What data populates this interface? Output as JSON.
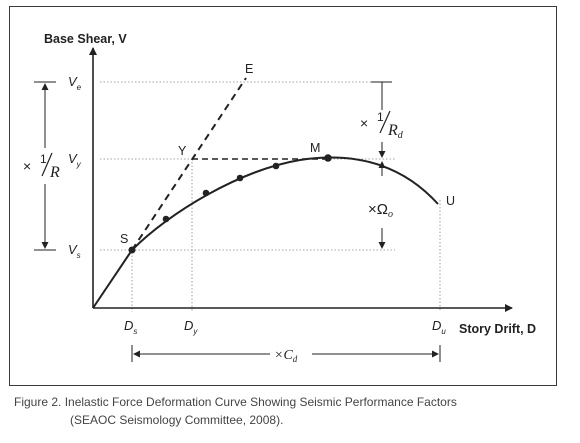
{
  "axes": {
    "y_label": "Base Shear, V",
    "x_label": "Story Drift, D"
  },
  "y_ticks": {
    "ve": {
      "main": "V",
      "sub": "e"
    },
    "vy": {
      "main": "V",
      "sub": "y"
    },
    "vs": {
      "main": "V",
      "sub": "s"
    }
  },
  "x_ticks": {
    "ds": {
      "main": "D",
      "sub": "s"
    },
    "dy": {
      "main": "D",
      "sub": "y"
    },
    "du": {
      "main": "D",
      "sub": "u"
    }
  },
  "points": {
    "e": "E",
    "y": "Y",
    "m": "M",
    "s": "S",
    "u": "U"
  },
  "factors": {
    "r_mult": "×",
    "r_num": "1",
    "r_den": "R",
    "rd_mult": "×",
    "rd_num": "1",
    "rd_den": "R",
    "rd_sub": "d",
    "omega": "×Ω",
    "omega_sub": "o",
    "cd": "×C",
    "cd_sub": "d"
  },
  "caption": {
    "line1": "Figure 2. Inelastic Force Deformation Curve Showing Seismic Performance Factors",
    "line2": "(SEAOC Seismology Committee, 2008)."
  },
  "colors": {
    "line": "#222222",
    "frame": "#3a3a3a",
    "guide": "#777777",
    "caption": "#444444"
  }
}
